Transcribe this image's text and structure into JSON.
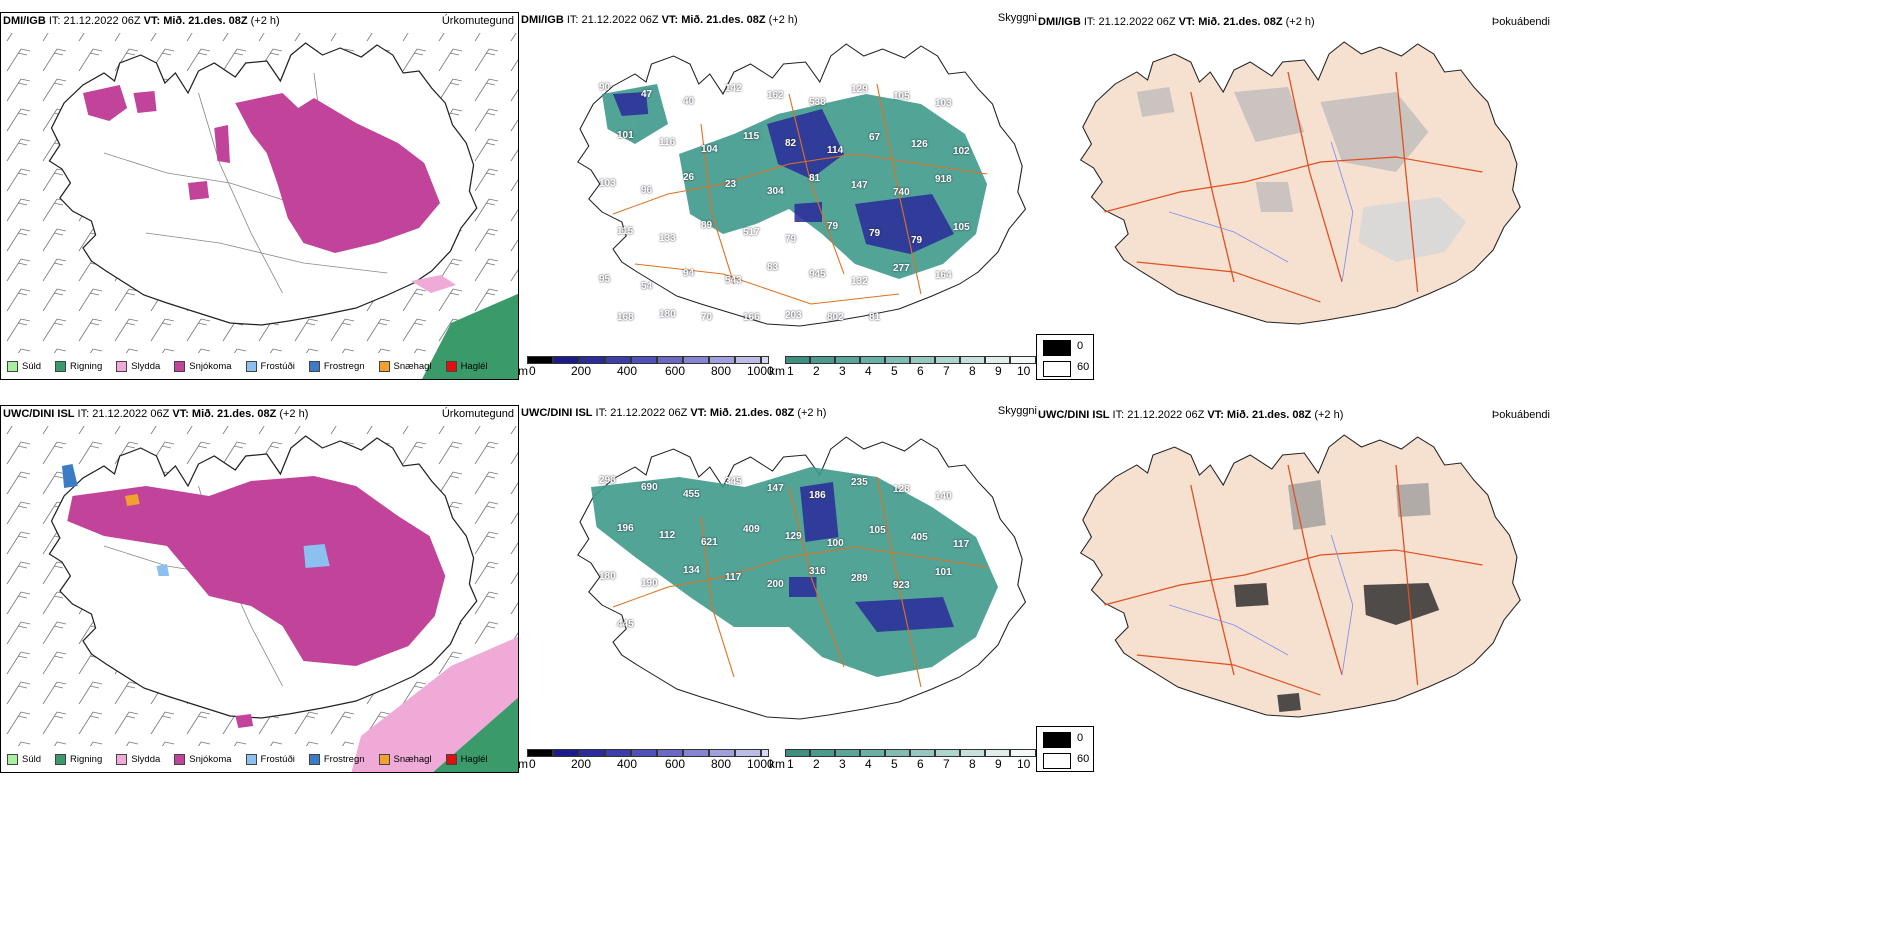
{
  "colors": {
    "sudd": "#a8f0a0",
    "rigning": "#3a9a6a",
    "slydda": "#efaad8",
    "snjokoma": "#c2439a",
    "frostudi": "#8cc0f0",
    "frostregn": "#3c7cc4",
    "snaehagl": "#f2a030",
    "haglel": "#e01010",
    "cloud": "#3f9a8c",
    "cloudlow": "#1a1a8a",
    "road": "#e07020",
    "land": "#f6e0d0",
    "river": "#6a8cf0"
  },
  "rows": [
    {
      "model": "DMI/IGB",
      "it": " IT: 21.12.2022 06Z ",
      "vt_label": "VT:",
      "vt_value": " Mið. 21.des. 08Z",
      "offset": " (+2 h)",
      "precip_type_title": "Úrkomutegund",
      "cloud_title": "Skyggni",
      "fog_title": "Þokuábendi",
      "cloud_numbers": [
        "90",
        "47",
        "40",
        "142",
        "162",
        "538",
        "129",
        "105",
        "103",
        "101",
        "116",
        "104",
        "115",
        "82",
        "114",
        "67",
        "126",
        "102",
        "103",
        "96",
        "26",
        "23",
        "304",
        "81",
        "147",
        "740",
        "918",
        "115",
        "133",
        "89",
        "517",
        "79",
        "79",
        "79",
        "79",
        "105",
        "95",
        "54",
        "94",
        "543",
        "83",
        "945",
        "132",
        "277",
        "164",
        "168",
        "180",
        "70",
        "166",
        "203",
        "802",
        "81"
      ]
    },
    {
      "model": "UWC/DINI ISL",
      "it": " IT: 21.12.2022 06Z ",
      "vt_label": "VT:",
      "vt_value": " Mið. 21.des. 08Z",
      "offset": " (+2 h)",
      "precip_type_title": "Úrkomutegund",
      "cloud_title": "Skyggni",
      "fog_title": "Þokuábendi",
      "cloud_numbers": [
        "298",
        "690",
        "455",
        "345",
        "147",
        "186",
        "235",
        "128",
        "140",
        "196",
        "112",
        "621",
        "409",
        "129",
        "100",
        "105",
        "405",
        "117",
        "180",
        "190",
        "134",
        "117",
        "200",
        "316",
        "289",
        "923",
        "101",
        "445"
      ]
    }
  ],
  "precip_legend": [
    "Súld",
    "Rigning",
    "Slydda",
    "Snjókoma",
    "Frostúði",
    "Frostregn",
    "Snæhagl",
    "Haglél"
  ],
  "cloud_bar": {
    "unit": "m",
    "ticks": [
      "0",
      "200",
      "400",
      "600",
      "800",
      "1000"
    ]
  },
  "vis_bar": {
    "unit": "km",
    "ticks": [
      "1",
      "2",
      "3",
      "4",
      "5",
      "6",
      "7",
      "8",
      "9",
      "10"
    ]
  },
  "fog_legend": {
    "dark": "0",
    "light": "60"
  }
}
